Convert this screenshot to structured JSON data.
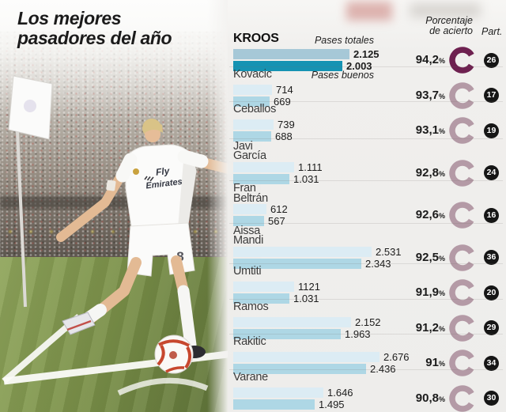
{
  "title": {
    "line1": "Los mejores",
    "line2": "pasadores del año"
  },
  "panel_header": {
    "accuracy_label_line1": "Porcentaje",
    "accuracy_label_line2": "de acierto",
    "participations_label": "Part."
  },
  "annotations": {
    "totals_label": "Pases totales",
    "good_label": "Pases buenos"
  },
  "photo": {
    "sponsor_line1": "Fly",
    "sponsor_line2": "Emirates",
    "shorts_number": "8"
  },
  "colors": {
    "donut_highlight": "#6e2150",
    "donut": "#b49aa6",
    "bar_total": "#dcecf4",
    "bar_good": "#aed7e5",
    "bar_total_highlight": "#a6c8d7",
    "bar_good_highlight": "#1593b3",
    "badge_bg": "#161616",
    "badge_text": "#ffffff"
  },
  "chart_data": {
    "type": "bar",
    "title": "Los mejores pasadores del año",
    "series_labels": [
      "Pases totales",
      "Pases buenos"
    ],
    "accuracy_header": "Porcentaje de acierto",
    "participations_header": "Part.",
    "xmax": 2676,
    "players": [
      {
        "name": "Kroos",
        "name_lines": [
          "KROOS"
        ],
        "pases_totales": 2125,
        "pases_totales_display": "2.125",
        "pases_buenos": 2003,
        "pases_buenos_display": "2.003",
        "accuracy_display": "94,2",
        "participations": "26",
        "highlight": true
      },
      {
        "name": "Kovacic",
        "name_lines": [
          "Kovacic"
        ],
        "pases_totales": 714,
        "pases_totales_display": "714",
        "pases_buenos": 669,
        "pases_buenos_display": "669",
        "accuracy_display": "93,7",
        "participations": "17",
        "highlight": false
      },
      {
        "name": "Ceballos",
        "name_lines": [
          "Ceballos"
        ],
        "pases_totales": 739,
        "pases_totales_display": "739",
        "pases_buenos": 688,
        "pases_buenos_display": "688",
        "accuracy_display": "93,1",
        "participations": "19",
        "highlight": false
      },
      {
        "name": "Javi García",
        "name_lines": [
          "Javi",
          "García"
        ],
        "pases_totales": 1111,
        "pases_totales_display": "1.111",
        "pases_buenos": 1031,
        "pases_buenos_display": "1.031",
        "accuracy_display": "92,8",
        "participations": "24",
        "highlight": false
      },
      {
        "name": "Fran Beltrán",
        "name_lines": [
          "Fran",
          "Beltrán"
        ],
        "pases_totales": 612,
        "pases_totales_display": "612",
        "pases_buenos": 567,
        "pases_buenos_display": "567",
        "accuracy_display": "92,6",
        "participations": "16",
        "highlight": false
      },
      {
        "name": "Aissa Mandi",
        "name_lines": [
          "Aissa",
          "Mandi"
        ],
        "pases_totales": 2531,
        "pases_totales_display": "2.531",
        "pases_buenos": 2343,
        "pases_buenos_display": "2.343",
        "accuracy_display": "92,5",
        "participations": "36",
        "highlight": false
      },
      {
        "name": "Umtiti",
        "name_lines": [
          "Umtiti"
        ],
        "pases_totales": 1121,
        "pases_totales_display": "1121",
        "pases_buenos": 1031,
        "pases_buenos_display": "1.031",
        "accuracy_display": "91,9",
        "participations": "20",
        "highlight": false
      },
      {
        "name": "Ramos",
        "name_lines": [
          "Ramos"
        ],
        "pases_totales": 2152,
        "pases_totales_display": "2.152",
        "pases_buenos": 1963,
        "pases_buenos_display": "1.963",
        "accuracy_display": "91,2",
        "participations": "29",
        "highlight": false
      },
      {
        "name": "Rakitic",
        "name_lines": [
          "Rakitic"
        ],
        "pases_totales": 2676,
        "pases_totales_display": "2.676",
        "pases_buenos": 2436,
        "pases_buenos_display": "2.436",
        "accuracy_display": "91",
        "participations": "34",
        "highlight": false
      },
      {
        "name": "Varane",
        "name_lines": [
          "Varane"
        ],
        "pases_totales": 1646,
        "pases_totales_display": "1.646",
        "pases_buenos": 1495,
        "pases_buenos_display": "1.495",
        "accuracy_display": "90,8",
        "participations": "30",
        "highlight": false
      }
    ]
  }
}
